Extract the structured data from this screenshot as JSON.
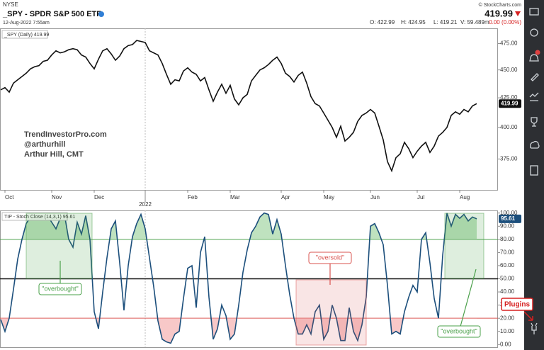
{
  "header": {
    "exchange": "NYSE",
    "title": "_SPY - SPDR S&P 500 ETF",
    "date": "12-Aug-2022 7:55am",
    "copyright": "© StockCharts.com",
    "price": "419.99",
    "change": "0.00 (0.00%)",
    "open": "O: 422.99",
    "high": "H: 424.95",
    "low": "L: 419.21",
    "volume": "V: 59.489m"
  },
  "watermark": [
    "TrendInvestorPro.com",
    "@arthurhill",
    "Arthur Hill, CMT"
  ],
  "sidebar": {
    "plugins": "Plugins"
  },
  "chart_data": [
    {
      "type": "line",
      "legend": "_SPY (Daily) 419.99",
      "log": true,
      "grid": false,
      "categories": [
        null,
        "Oct",
        null,
        null,
        null,
        null,
        null,
        null,
        null,
        null,
        null,
        null,
        "Nov",
        null,
        null,
        null,
        null,
        null,
        null,
        null,
        null,
        null,
        "Dec",
        null,
        null,
        null,
        null,
        null,
        null,
        null,
        null,
        null,
        null,
        null,
        "2022",
        null,
        null,
        null,
        null,
        null,
        null,
        null,
        null,
        null,
        "Feb",
        null,
        null,
        null,
        null,
        null,
        null,
        null,
        null,
        null,
        "Mar",
        null,
        null,
        null,
        null,
        null,
        null,
        null,
        null,
        null,
        null,
        null,
        "Apr",
        null,
        null,
        null,
        null,
        null,
        null,
        null,
        null,
        null,
        "May",
        null,
        null,
        null,
        null,
        null,
        null,
        null,
        null,
        null,
        null,
        "Jun",
        null,
        null,
        null,
        null,
        null,
        null,
        null,
        null,
        null,
        null,
        "Jul",
        null,
        null,
        null,
        null,
        null,
        null,
        null,
        null,
        null,
        "Aug",
        null,
        null,
        null,
        null
      ],
      "series": [
        {
          "name": "_SPY",
          "color": "#111111",
          "values": [
            432,
            434,
            430,
            438,
            441,
            444,
            447,
            451,
            453,
            454,
            458,
            459,
            464,
            468,
            466,
            467,
            469,
            470,
            469,
            464,
            462,
            456,
            451,
            460,
            468,
            470,
            465,
            459,
            463,
            470,
            473,
            474,
            478,
            477,
            476,
            468,
            466,
            464,
            456,
            446,
            437,
            441,
            440,
            449,
            452,
            448,
            446,
            440,
            443,
            432,
            422,
            430,
            437,
            429,
            436,
            424,
            419,
            425,
            428,
            440,
            445,
            450,
            452,
            455,
            459,
            462,
            456,
            447,
            444,
            439,
            445,
            448,
            438,
            426,
            420,
            418,
            412,
            406,
            400,
            392,
            401,
            389,
            392,
            396,
            405,
            410,
            412,
            415,
            412,
            401,
            390,
            373,
            366,
            376,
            379,
            388,
            383,
            376,
            381,
            385,
            388,
            380,
            385,
            393,
            396,
            400,
            410,
            413,
            411,
            415,
            413,
            418,
            419.99
          ]
        }
      ],
      "ylim": [
        352,
        490
      ],
      "yticks": [
        {
          "value": 475,
          "label": "475.00"
        },
        {
          "value": 450,
          "label": "450.00"
        },
        {
          "value": 425,
          "label": "425.00"
        },
        {
          "value": 400,
          "label": "400.00"
        },
        {
          "value": 375,
          "label": "375.00"
        }
      ]
    },
    {
      "type": "line",
      "legend": "TIP - Stoch Close (14,3,1) 95.61",
      "log": false,
      "series": [
        {
          "name": "Stoch Close",
          "color": "#1c4f7c",
          "values": [
            19,
            10,
            20,
            42,
            65,
            80,
            92,
            97,
            100,
            100,
            100,
            98,
            93,
            88,
            96,
            99,
            80,
            74,
            93,
            84,
            98,
            80,
            25,
            12,
            40,
            66,
            88,
            94,
            62,
            26,
            60,
            82,
            92,
            99,
            88,
            66,
            44,
            18,
            4,
            2,
            1,
            8,
            10,
            35,
            58,
            60,
            28,
            70,
            82,
            36,
            4,
            12,
            30,
            22,
            4,
            8,
            30,
            55,
            72,
            85,
            90,
            97,
            100,
            99,
            84,
            95,
            84,
            60,
            38,
            20,
            8,
            8,
            15,
            8,
            25,
            30,
            4,
            10,
            30,
            20,
            3,
            3,
            28,
            10,
            3,
            15,
            36,
            90,
            92,
            85,
            76,
            45,
            8,
            10,
            8,
            25,
            36,
            45,
            40,
            80,
            85,
            62,
            35,
            20,
            68,
            100,
            90,
            99,
            96,
            99,
            94,
            97,
            95.61
          ]
        }
      ],
      "levels": [
        {
          "value": 80,
          "color": "#4aa04a",
          "fill": "above",
          "fill_color": "#a9d8a9"
        },
        {
          "value": 50,
          "color": "#111111"
        },
        {
          "value": 20,
          "color": "#d9534f",
          "fill": "below",
          "fill_color": "#f5b5b5"
        }
      ],
      "annotations": [
        "\"overbought\"",
        "\"oversold\"",
        "\"overbought\""
      ],
      "ylim": [
        -2,
        102
      ],
      "yticks": [
        {
          "value": 100,
          "label": "100.00"
        },
        {
          "value": 90,
          "label": "90.00"
        },
        {
          "value": 80,
          "label": "80.00"
        },
        {
          "value": 70,
          "label": "70.00"
        },
        {
          "value": 60,
          "label": "60.00"
        },
        {
          "value": 50,
          "label": "50.00"
        },
        {
          "value": 40,
          "label": "40.00"
        },
        {
          "value": 30,
          "label": "30.00"
        },
        {
          "value": 20,
          "label": "20.00"
        },
        {
          "value": 10,
          "label": "10.00"
        },
        {
          "value": 0,
          "label": "0.00"
        }
      ]
    }
  ]
}
